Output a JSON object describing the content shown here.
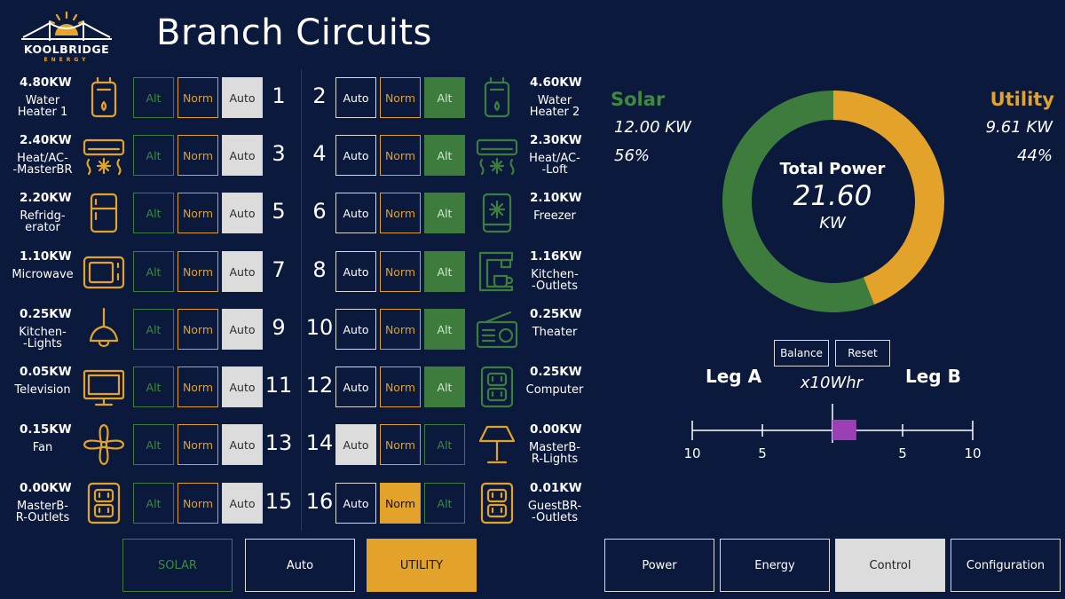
{
  "logo": {
    "word": "KOOLBRIDGE",
    "sub": "ENERGY"
  },
  "page_title": "Branch Circuits",
  "buttons": {
    "alt": "Alt",
    "norm": "Norm",
    "auto": "Auto"
  },
  "circuits": [
    {
      "num": "1",
      "kw": "4.80KW",
      "name": "Water\nHeater 1",
      "icon": "water-heater-icon",
      "mode": "auto"
    },
    {
      "num": "2",
      "kw": "4.60KW",
      "name": "Water\nHeater 2",
      "icon": "water-heater-icon",
      "mode": "alt"
    },
    {
      "num": "3",
      "kw": "2.40KW",
      "name": "Heat/AC-\n-MasterBR",
      "icon": "heat-ac-icon",
      "mode": "auto"
    },
    {
      "num": "4",
      "kw": "2.30KW",
      "name": "Heat/AC-\n-Loft",
      "icon": "heat-ac-icon",
      "mode": "alt"
    },
    {
      "num": "5",
      "kw": "2.20KW",
      "name": "Refridg-\nerator",
      "icon": "refrigerator-icon",
      "mode": "auto"
    },
    {
      "num": "6",
      "kw": "2.10KW",
      "name": "Freezer",
      "icon": "freezer-icon",
      "mode": "alt"
    },
    {
      "num": "7",
      "kw": "1.10KW",
      "name": "Microwave",
      "icon": "microwave-icon",
      "mode": "auto"
    },
    {
      "num": "8",
      "kw": "1.16KW",
      "name": "Kitchen-\n-Outlets",
      "icon": "coffee-maker-icon",
      "mode": "alt"
    },
    {
      "num": "9",
      "kw": "0.25KW",
      "name": "Kitchen-\n-Lights",
      "icon": "pendant-light-icon",
      "mode": "auto"
    },
    {
      "num": "10",
      "kw": "0.25KW",
      "name": "Theater",
      "icon": "radio-icon",
      "mode": "alt"
    },
    {
      "num": "11",
      "kw": "0.05KW",
      "name": "Television",
      "icon": "television-icon",
      "mode": "auto"
    },
    {
      "num": "12",
      "kw": "0.25KW",
      "name": "Computer",
      "icon": "outlet-icon",
      "mode": "alt"
    },
    {
      "num": "13",
      "kw": "0.15KW",
      "name": "Fan",
      "icon": "fan-icon",
      "mode": "auto"
    },
    {
      "num": "14",
      "kw": "0.00KW",
      "name": "MasterB-\nR-Lights",
      "icon": "lamp-icon",
      "mode": "auto"
    },
    {
      "num": "15",
      "kw": "0.00KW",
      "name": "MasterB-\nR-Outlets",
      "icon": "outlet-icon",
      "mode": "auto"
    },
    {
      "num": "16",
      "kw": "0.01KW",
      "name": "GuestBR-\n-Outlets",
      "icon": "outlet-icon",
      "mode": "norm"
    }
  ],
  "mode_buttons": {
    "solar": "SOLAR",
    "auto": "Auto",
    "utility": "UTILITY",
    "selected": "utility"
  },
  "nav": {
    "power": "Power",
    "energy": "Energy",
    "control": "Control",
    "configuration": "Configuration",
    "selected": "control"
  },
  "power": {
    "solar_label": "Solar",
    "solar_kw": "12.00 KW",
    "solar_pct": "56%",
    "solar_fraction": 0.56,
    "utility_label": "Utility",
    "utility_kw": "9.61 KW",
    "utility_pct": "44%",
    "utility_fraction": 0.44,
    "total_label": "Total Power",
    "total_value": "21.60",
    "total_unit": "KW"
  },
  "balance": {
    "balance_label": "Balance",
    "reset_label": "Reset",
    "leg_a": "Leg A",
    "leg_b": "Leg B",
    "unit": "x10Whr",
    "ticks": [
      "10",
      "5",
      "5",
      "10"
    ],
    "value_leg_b": 1.7
  },
  "colors": {
    "background": "#0b1a3c",
    "solar": "#3e7c3e",
    "utility": "#e3a22a",
    "balance_marker": "#9b3fb5"
  }
}
